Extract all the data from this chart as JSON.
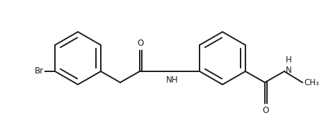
{
  "background_color": "#ffffff",
  "line_color": "#1a1a1a",
  "line_width": 1.4,
  "font_size": 8.5,
  "fig_width": 4.66,
  "fig_height": 1.66,
  "dpi": 100,
  "br_label": "Br",
  "o1_label": "O",
  "nh_label": "NH",
  "o2_label": "O",
  "nhch3_label": "H\nN",
  "ch3_label": "CH₃"
}
